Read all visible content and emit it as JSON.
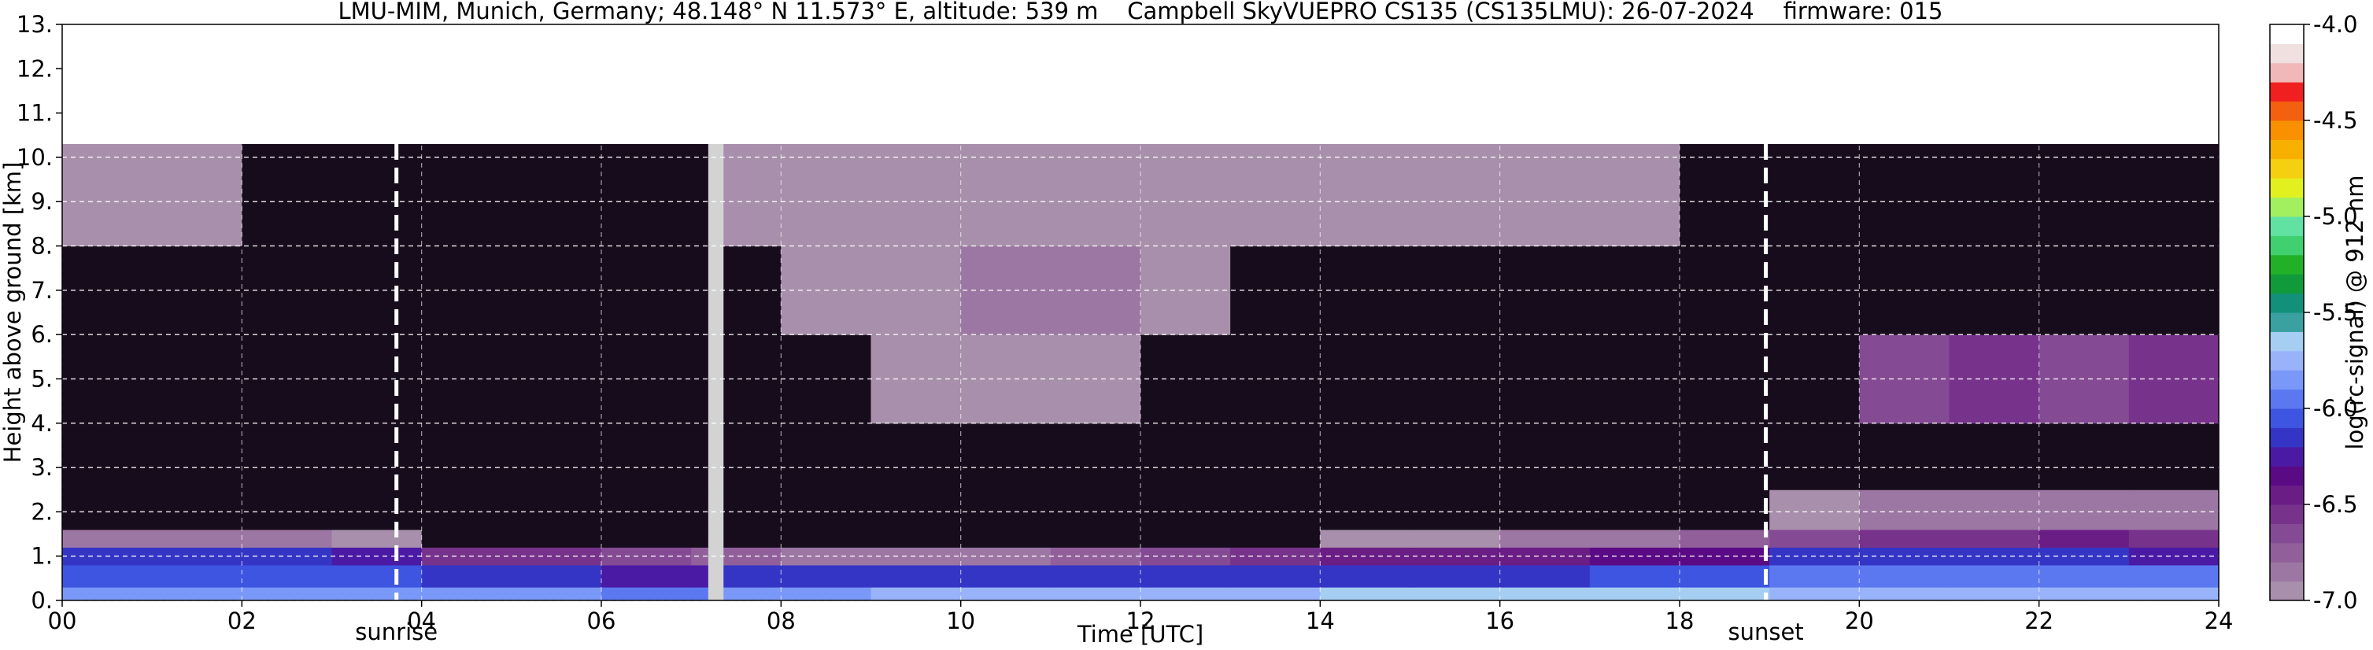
{
  "chart_data": {
    "type": "heatmap",
    "title": "LMU-MIM, Munich, Germany; 48.148° N 11.573° E, altitude: 539 m    Campbell SkyVUEPRO CS135 (CS135LMU): 26-07-2024    firmware: 015",
    "x_label": "Time [UTC]",
    "y_label": "Height above ground [km]",
    "colorbar_label": "log(rc-signal) @ 912 nm",
    "xlim": [
      0,
      24
    ],
    "ylim": [
      0,
      13
    ],
    "xticks": [
      {
        "value": 0,
        "label": "00"
      },
      {
        "value": 2,
        "label": "02"
      },
      {
        "value": 4,
        "label": "04"
      },
      {
        "value": 6,
        "label": "06"
      },
      {
        "value": 8,
        "label": "08"
      },
      10,
      12,
      14,
      16,
      18,
      20,
      22,
      24
    ],
    "yticks": [
      {
        "value": 0,
        "label": "0."
      },
      {
        "value": 1,
        "label": "1."
      },
      {
        "value": 2,
        "label": "2."
      },
      {
        "value": 3,
        "label": "3."
      },
      {
        "value": 4,
        "label": "4."
      },
      {
        "value": 5,
        "label": "5."
      },
      {
        "value": 6,
        "label": "6."
      },
      {
        "value": 7,
        "label": "7."
      },
      {
        "value": 8,
        "label": "8."
      },
      {
        "value": 9,
        "label": "9."
      },
      {
        "value": 10,
        "label": "10."
      },
      {
        "value": 11,
        "label": "11."
      },
      {
        "value": 12,
        "label": "12."
      },
      {
        "value": 13,
        "label": "13."
      }
    ],
    "clim": [
      -7,
      -4
    ],
    "cticks": [
      {
        "value": -7,
        "label": "-7.0"
      },
      {
        "value": -6.5,
        "label": "-6.5"
      },
      {
        "value": -6,
        "label": "-6.0"
      },
      {
        "value": -5.5,
        "label": "-5.5"
      },
      {
        "value": -5,
        "label": "-5.0"
      },
      {
        "value": -4.5,
        "label": "-4.5"
      },
      {
        "value": -4,
        "label": "-4.0"
      }
    ],
    "colors": [
      "#a88fab",
      "#9c77a3",
      "#91609b",
      "#844a93",
      "#77338b",
      "#6a1d85",
      "#5a0a85",
      "#4a1aa5",
      "#3535c5",
      "#3d55e0",
      "#5c78f0",
      "#7a98f8",
      "#98b3fa",
      "#a6cdf2",
      "#3aa0a0",
      "#12907a",
      "#109a3a",
      "#22b028",
      "#40d070",
      "#62e2a2",
      "#a2f060",
      "#e2f020",
      "#f4d010",
      "#f8b000",
      "#f89000",
      "#f26010",
      "#f02020",
      "#f0b8b8",
      "#f0e0e0",
      "#ffffff"
    ],
    "under_color": "#170c1c",
    "missing_color": "#d3d3d3",
    "grid": true,
    "annotations": [
      {
        "x": 3.72,
        "label": "sunrise"
      },
      {
        "x": 18.96,
        "label": "sunset"
      }
    ],
    "x_edges": [
      0,
      1,
      2,
      3,
      4,
      5,
      6,
      7,
      7.19,
      7.36,
      8,
      9,
      10,
      11,
      12,
      13,
      14,
      15,
      16,
      17,
      18,
      19,
      20,
      21,
      22,
      23,
      24
    ],
    "y_edges": [
      0,
      0.3,
      0.8,
      1.2,
      1.6,
      2.5,
      4,
      6,
      8,
      10.3
    ],
    "z": [
      [
        -5.9,
        -5.9,
        -5.9,
        -5.9,
        -5.9,
        -5.9,
        -6.0,
        -6.0,
        null,
        -5.9,
        -5.9,
        -5.8,
        -5.8,
        -5.8,
        -5.8,
        -5.8,
        -5.7,
        -5.7,
        -5.7,
        -5.7,
        -5.7,
        -5.8,
        -5.8,
        -5.8,
        -5.8,
        -5.8
      ],
      [
        -6.1,
        -6.1,
        -6.1,
        -6.1,
        -6.2,
        -6.2,
        -6.3,
        -6.3,
        null,
        -6.2,
        -6.2,
        -6.2,
        -6.2,
        -6.2,
        -6.2,
        -6.2,
        -6.2,
        -6.2,
        -6.2,
        -6.1,
        -6.1,
        -6.0,
        -6.0,
        -6.0,
        -6.0,
        -6.0
      ],
      [
        -6.2,
        -6.2,
        -6.2,
        -6.3,
        -6.6,
        -6.6,
        -6.7,
        -6.8,
        null,
        -6.8,
        -6.9,
        -6.9,
        -6.9,
        -6.8,
        -6.7,
        -6.6,
        -6.5,
        -6.5,
        -6.5,
        -6.4,
        -6.4,
        -6.2,
        -6.2,
        -6.2,
        -6.2,
        -6.3
      ],
      [
        -6.9,
        -6.9,
        -6.9,
        -7.0,
        -7.1,
        -7.1,
        -7.1,
        -7.1,
        null,
        -7.1,
        -7.1,
        -7.1,
        -7.1,
        -7.1,
        -7.1,
        -7.1,
        -7.0,
        -7.0,
        -6.9,
        -6.9,
        -6.8,
        -6.7,
        -6.6,
        -6.6,
        -6.5,
        -6.6
      ],
      [
        -7.1,
        -7.1,
        -7.1,
        -7.1,
        -7.1,
        -7.1,
        -7.1,
        -7.1,
        null,
        -7.1,
        -7.1,
        -7.1,
        -7.1,
        -7.1,
        -7.1,
        -7.1,
        -7.1,
        -7.1,
        -7.1,
        -7.1,
        -7.1,
        -7.0,
        -6.9,
        -6.9,
        -6.9,
        -6.9
      ],
      [
        -7.1,
        -7.1,
        -7.1,
        -7.1,
        -7.1,
        -7.1,
        -7.1,
        -7.1,
        null,
        -7.1,
        -7.1,
        -7.1,
        -7.1,
        -7.1,
        -7.1,
        -7.1,
        -7.1,
        -7.1,
        -7.1,
        -7.1,
        -7.1,
        -7.1,
        -7.1,
        -7.1,
        -7.1,
        -7.1
      ],
      [
        -7.1,
        -7.1,
        -7.1,
        -7.1,
        -7.1,
        -7.1,
        -7.1,
        -7.1,
        null,
        -7.1,
        -7.1,
        -7.0,
        -7.0,
        -7.0,
        -7.1,
        -7.1,
        -7.1,
        -7.1,
        -7.1,
        -7.1,
        -7.1,
        -7.1,
        -6.7,
        -6.6,
        -6.7,
        -6.6
      ],
      [
        -7.1,
        -7.1,
        -7.1,
        -7.1,
        -7.1,
        -7.1,
        -7.1,
        -7.1,
        null,
        -7.1,
        -7.0,
        -7.0,
        -6.9,
        -6.9,
        -7.0,
        -7.1,
        -7.1,
        -7.1,
        -7.1,
        -7.1,
        -7.1,
        -7.1,
        -7.1,
        -7.1,
        -7.1,
        -7.1
      ],
      [
        -7.0,
        -7.0,
        -7.1,
        -7.1,
        -7.1,
        -7.1,
        -7.1,
        -7.1,
        null,
        -7.0,
        -7.0,
        -7.0,
        -7.0,
        -7.0,
        -7.0,
        -7.0,
        -7.0,
        -7.0,
        -7.0,
        -7.0,
        -7.1,
        -7.1,
        -7.1,
        -7.1,
        -7.1,
        -7.1
      ]
    ]
  }
}
